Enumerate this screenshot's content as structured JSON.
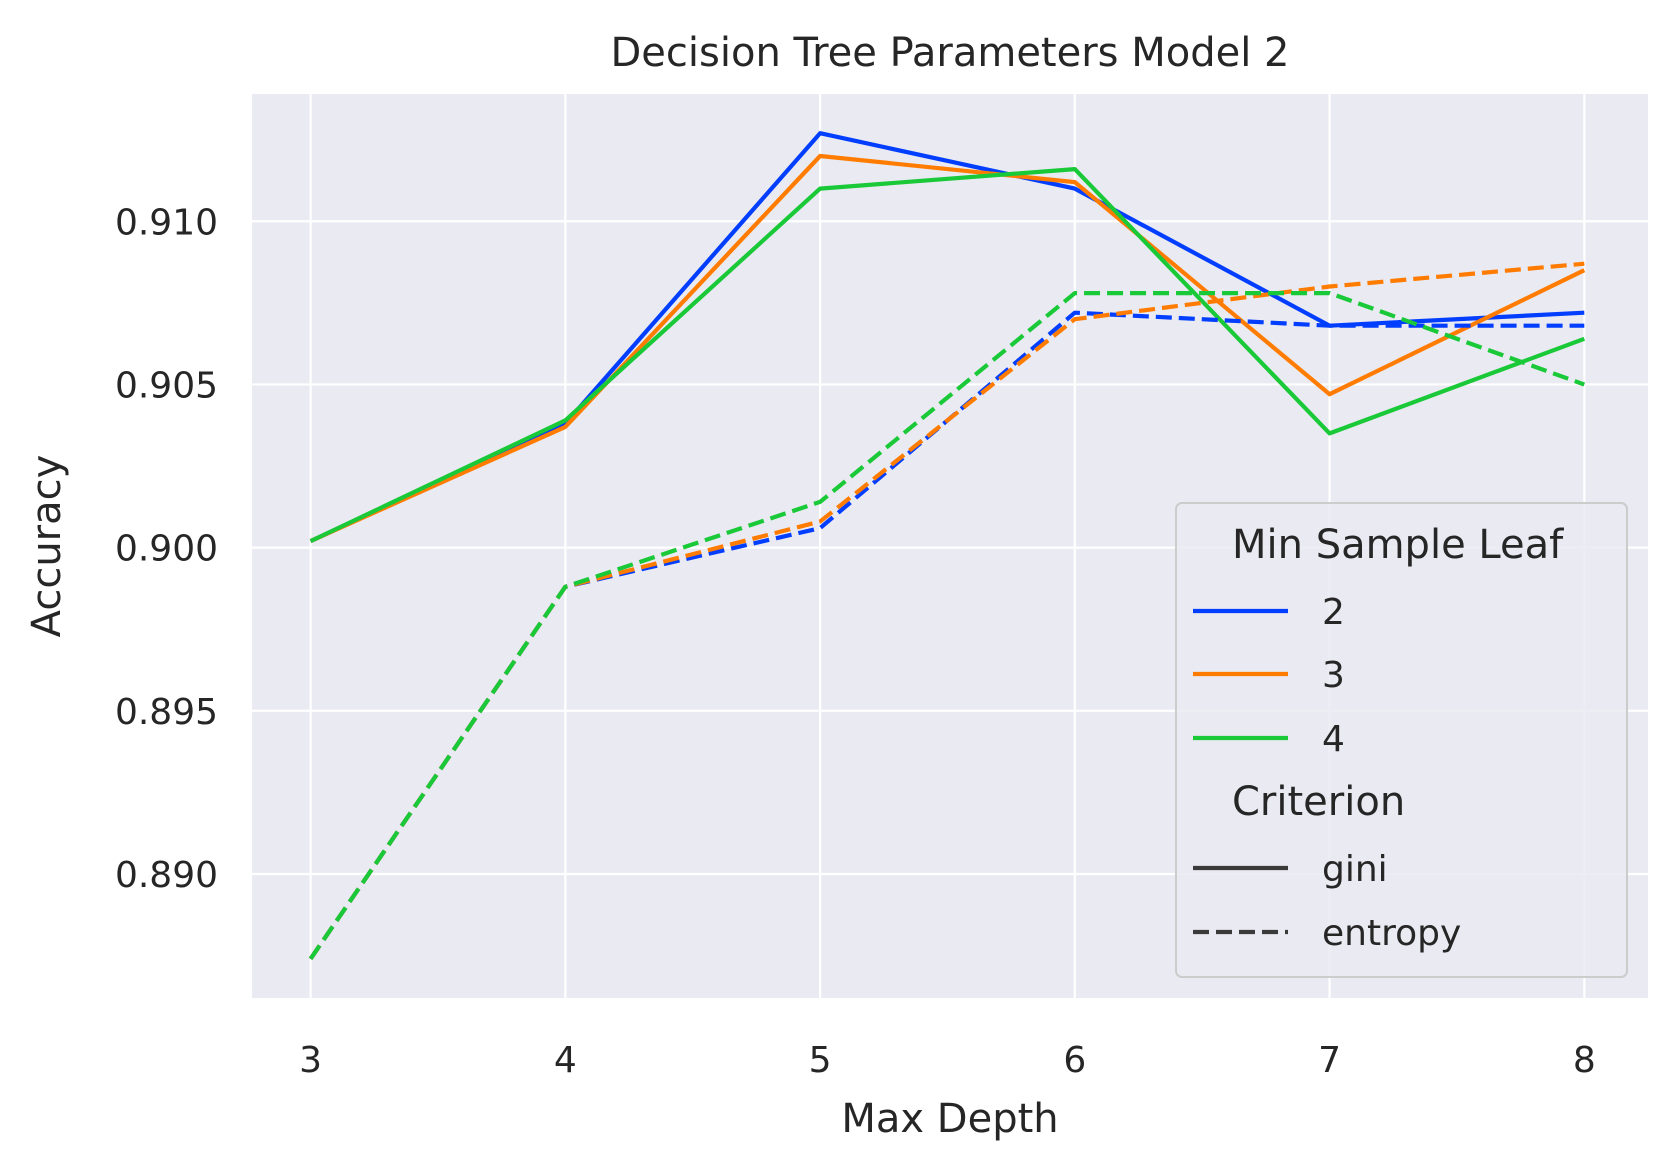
{
  "chart_data": {
    "type": "line",
    "title": "Decision Tree Parameters Model 2",
    "xlabel": "Max Depth",
    "ylabel": "Accuracy",
    "x": [
      3,
      4,
      5,
      6,
      7,
      8
    ],
    "x_tick_labels": [
      "3",
      "4",
      "5",
      "6",
      "7",
      "8"
    ],
    "y_ticks": [
      0.89,
      0.895,
      0.9,
      0.905,
      0.91
    ],
    "y_tick_labels": [
      "0.890",
      "0.895",
      "0.900",
      "0.905",
      "0.910"
    ],
    "xlim": [
      2.77,
      8.25
    ],
    "ylim": [
      0.8862,
      0.9139
    ],
    "grid": true,
    "legend_position": "lower-right",
    "legend": {
      "hue_title": "Min Sample Leaf",
      "style_title": "Criterion",
      "hue_entries": [
        {
          "label": "2",
          "color": "#023eff"
        },
        {
          "label": "3",
          "color": "#ff7c00"
        },
        {
          "label": "4",
          "color": "#1ac938"
        }
      ],
      "style_entries": [
        {
          "label": "gini",
          "dash": "solid"
        },
        {
          "label": "entropy",
          "dash": "dashed"
        }
      ]
    },
    "series": [
      {
        "min_sample_leaf": "2",
        "criterion": "gini",
        "color": "#023eff",
        "dash": "solid",
        "values": [
          0.9002,
          0.9038,
          0.9127,
          0.911,
          0.9068,
          0.9072
        ]
      },
      {
        "min_sample_leaf": "3",
        "criterion": "gini",
        "color": "#ff7c00",
        "dash": "solid",
        "values": [
          0.9002,
          0.9037,
          0.912,
          0.9112,
          0.9047,
          0.9085
        ]
      },
      {
        "min_sample_leaf": "4",
        "criterion": "gini",
        "color": "#1ac938",
        "dash": "solid",
        "values": [
          0.9002,
          0.9039,
          0.911,
          0.9116,
          0.9035,
          0.9064
        ]
      },
      {
        "min_sample_leaf": "2",
        "criterion": "entropy",
        "color": "#023eff",
        "dash": "dashed",
        "values": [
          0.8874,
          0.8988,
          0.9006,
          0.9072,
          0.9068,
          0.9068
        ]
      },
      {
        "min_sample_leaf": "3",
        "criterion": "entropy",
        "color": "#ff7c00",
        "dash": "dashed",
        "values": [
          0.8874,
          0.8988,
          0.9008,
          0.907,
          0.908,
          0.9087
        ]
      },
      {
        "min_sample_leaf": "4",
        "criterion": "entropy",
        "color": "#1ac938",
        "dash": "dashed",
        "values": [
          0.8874,
          0.8988,
          0.9014,
          0.9078,
          0.9078,
          0.905
        ]
      }
    ]
  },
  "colors": {
    "plot_background": "#eaeaf2",
    "grid": "#ffffff",
    "text": "#262626",
    "legend_background": "#eaeaf2",
    "legend_border": "#cccccc",
    "style_line": "#3a3a3a"
  }
}
